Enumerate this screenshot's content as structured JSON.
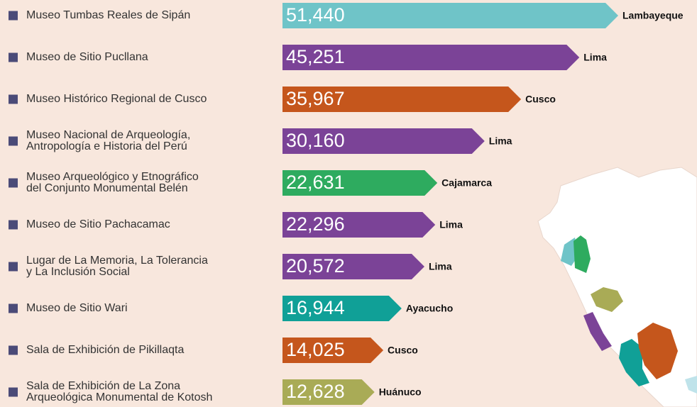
{
  "chart_data": {
    "type": "bar",
    "categories": [
      "Museo Tumbas Reales de Sipán",
      "Museo de Sitio Pucllana",
      "Museo Histórico Regional de Cusco",
      "Museo Nacional de Arqueología,\nAntropología e Historia del Perú",
      "Museo Arqueológico y Etnográfico\ndel Conjunto Monumental Belén",
      "Museo de Sitio Pachacamac",
      "Lugar de La Memoria, La Tolerancia\ny La Inclusión Social",
      "Museo de Sitio Wari",
      "Sala de Exhibición de Pikillaqta",
      "Sala de Exhibición de La Zona\nArqueológica Monumental de Kotosh"
    ],
    "values": [
      51440,
      45251,
      35967,
      30160,
      22631,
      22296,
      20572,
      16944,
      14025,
      12628
    ],
    "value_labels": [
      "51,440",
      "45,251",
      "35,967",
      "30,160",
      "22,631",
      "22,296",
      "20,572",
      "16,944",
      "14,025",
      "12,628"
    ],
    "regions": [
      "Lambayeque",
      "Lima",
      "Cusco",
      "Lima",
      "Cajamarca",
      "Lima",
      "Lima",
      "Ayacucho",
      "Cusco",
      "Huánuco"
    ],
    "colors": [
      "#6fc4c8",
      "#7b4397",
      "#c5561c",
      "#7b4397",
      "#2eab5f",
      "#7b4397",
      "#7b4397",
      "#10a097",
      "#c5561c",
      "#a9ab56"
    ]
  }
}
